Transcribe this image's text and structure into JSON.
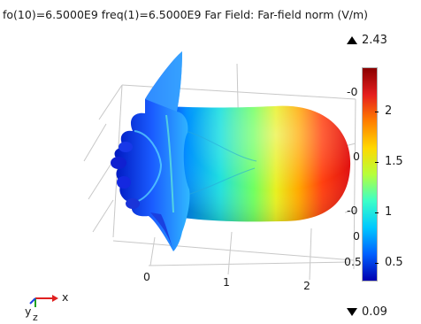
{
  "plot": {
    "title": "fo(10)=6.5000E9 freq(1)=6.5000E9   Far Field: Far-field norm (V/m)"
  },
  "axes": {
    "x_ticks": [
      "0",
      "1",
      "2"
    ],
    "right_labels": [
      "-0",
      "0",
      "-0",
      "0",
      "0.5"
    ],
    "triad": {
      "x": "x",
      "y": "y",
      "z": "z"
    }
  },
  "colorbar": {
    "max_label": "2.43",
    "min_label": "0.09",
    "ticks": [
      "2",
      "1.5",
      "1",
      "0.5"
    ],
    "colors": [
      "#8b0000",
      "#e51e1e",
      "#ff7f00",
      "#ffd800",
      "#b6ff3b",
      "#3bffc8",
      "#00c8ff",
      "#0060ff",
      "#0000b0"
    ]
  }
}
